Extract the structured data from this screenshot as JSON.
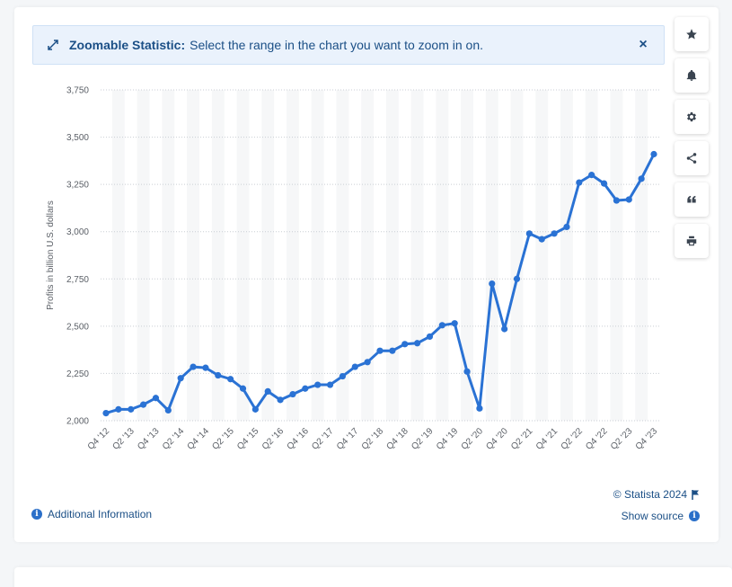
{
  "banner": {
    "title": "Zoomable Statistic:",
    "text": "Select the range in the chart you want to zoom in on.",
    "close_glyph": "×"
  },
  "side_buttons": [
    {
      "icon": "star-icon"
    },
    {
      "icon": "bell-icon"
    },
    {
      "icon": "gear-icon"
    },
    {
      "icon": "share-icon"
    },
    {
      "icon": "quote-icon"
    },
    {
      "icon": "print-icon"
    }
  ],
  "footer": {
    "additional_info": "Additional Information",
    "copyright": "© Statista 2024",
    "show_source": "Show source"
  },
  "colors": {
    "line": "#2a72d4",
    "banner_bg": "#eaf2fc",
    "accent_text": "#1b4f86"
  },
  "chart_data": {
    "type": "line",
    "ylabel": "Profits in billion U.S. dollars",
    "ylim": [
      2000,
      3750
    ],
    "yticks": [
      2000,
      2250,
      2500,
      2750,
      3000,
      3250,
      3500,
      3750
    ],
    "ytick_labels": [
      "2,000",
      "2,250",
      "2,500",
      "2,750",
      "3,000",
      "3,250",
      "3,500",
      "3,750"
    ],
    "x": [
      "Q4 '12",
      "Q1 '13",
      "Q2 '13",
      "Q3 '13",
      "Q4 '13",
      "Q1 '14",
      "Q2 '14",
      "Q3 '14",
      "Q4 '14",
      "Q1 '15",
      "Q2 '15",
      "Q3 '15",
      "Q4 '15",
      "Q1 '16",
      "Q2 '16",
      "Q3 '16",
      "Q4 '16",
      "Q1 '17",
      "Q2 '17",
      "Q3 '17",
      "Q4 '17",
      "Q1 '18",
      "Q2 '18",
      "Q3 '18",
      "Q4 '18",
      "Q1 '19",
      "Q2 '19",
      "Q3 '19",
      "Q4 '19",
      "Q1 '20",
      "Q2 '20",
      "Q3 '20",
      "Q4 '20",
      "Q1 '21",
      "Q2 '21",
      "Q3 '21",
      "Q4 '21",
      "Q1 '22",
      "Q2 '22",
      "Q3 '22",
      "Q4 '22",
      "Q1 '23",
      "Q2 '23",
      "Q3 '23",
      "Q4 '23"
    ],
    "xtick_labels": [
      "Q4 '12",
      "Q2 '13",
      "Q4 '13",
      "Q2 '14",
      "Q4 '14",
      "Q2 '15",
      "Q4 '15",
      "Q2 '16",
      "Q4 '16",
      "Q2 '17",
      "Q4 '17",
      "Q2 '18",
      "Q4 '18",
      "Q2 '19",
      "Q4 '19",
      "Q2 '20",
      "Q4 '20",
      "Q2 '21",
      "Q4 '21",
      "Q2 '22",
      "Q4 '22",
      "Q2 '23",
      "Q4 '23"
    ],
    "series": [
      {
        "values": [
          2040,
          2060,
          2060,
          2085,
          2120,
          2055,
          2225,
          2285,
          2280,
          2240,
          2220,
          2170,
          2060,
          2155,
          2110,
          2140,
          2170,
          2190,
          2190,
          2235,
          2285,
          2310,
          2370,
          2370,
          2405,
          2410,
          2445,
          2505,
          2515,
          2260,
          2065,
          2725,
          2485,
          2750,
          2990,
          2960,
          2990,
          3025,
          3260,
          3300,
          3255,
          3165,
          3170,
          3280,
          3410
        ]
      }
    ]
  }
}
